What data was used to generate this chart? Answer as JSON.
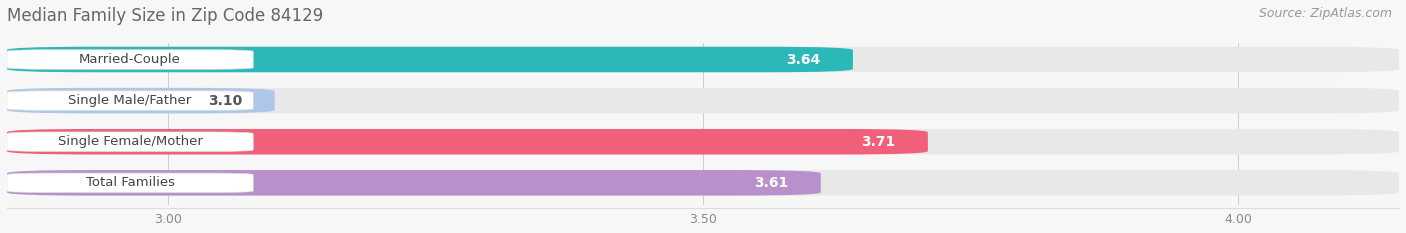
{
  "title": "Median Family Size in Zip Code 84129",
  "source": "Source: ZipAtlas.com",
  "categories": [
    "Married-Couple",
    "Single Male/Father",
    "Single Female/Mother",
    "Total Families"
  ],
  "values": [
    3.64,
    3.1,
    3.71,
    3.61
  ],
  "bar_colors": [
    "#2ab8b8",
    "#aec6e8",
    "#f0607a",
    "#b890cc"
  ],
  "track_color": "#e8e8e8",
  "value_label_color_inside": [
    "#ffffff",
    "#555555",
    "#ffffff",
    "#ffffff"
  ],
  "xmin": 2.85,
  "xmax": 4.15,
  "xticks": [
    3.0,
    3.5,
    4.0
  ],
  "background_color": "#f7f7f7",
  "bar_height": 0.62,
  "bar_gap": 0.38,
  "value_fontsize": 10,
  "label_fontsize": 9.5,
  "title_fontsize": 12,
  "source_fontsize": 9,
  "title_color": "#666666",
  "source_color": "#999999",
  "tick_color": "#888888"
}
